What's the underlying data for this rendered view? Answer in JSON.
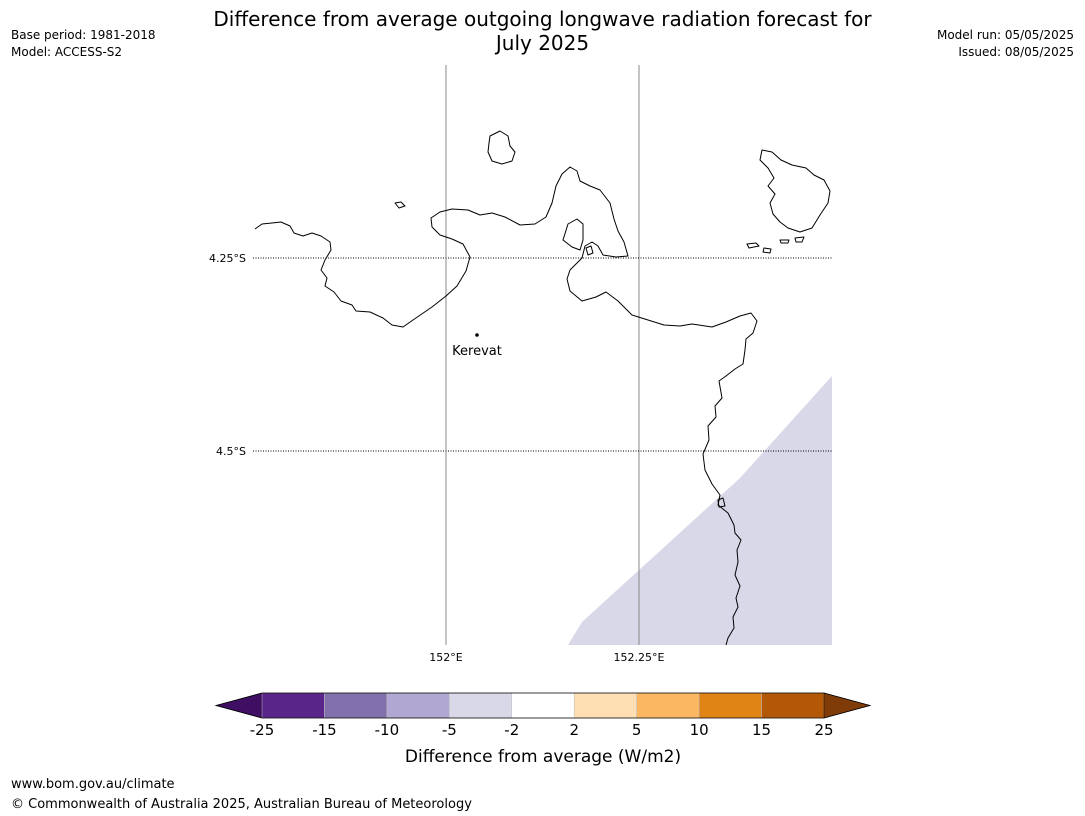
{
  "title": {
    "line1": "Difference from average outgoing longwave radiation forecast for",
    "line2": "July 2025"
  },
  "meta": {
    "base_period": "Base period: 1981-2018",
    "model": "Model: ACCESS-S2",
    "model_run": "Model run: 05/05/2025",
    "issued": "Issued: 08/05/2025"
  },
  "map": {
    "lat_labels": [
      "4.25°S",
      "4.5°S"
    ],
    "lon_labels": [
      "152°E",
      "152.25°E"
    ],
    "place": {
      "name": "Kerevat"
    },
    "shade_color": "#d8d8e9",
    "coast_color": "#000000"
  },
  "colorbar": {
    "ticks": [
      "-25",
      "-15",
      "-10",
      "-5",
      "-2",
      "2",
      "5",
      "10",
      "15",
      "25"
    ],
    "colors": [
      "#3f0f63",
      "#5a2589",
      "#8270ad",
      "#b0a8d2",
      "#d8d8e9",
      "#ffffff",
      "#fddfb3",
      "#fbb762",
      "#e08416",
      "#b35807",
      "#7f3b08"
    ],
    "label": "Difference from average (W/m2)"
  },
  "footer": {
    "url": "www.bom.gov.au/climate",
    "copyright": "© Commonwealth of Australia 2025, Australian Bureau of Meteorology"
  }
}
